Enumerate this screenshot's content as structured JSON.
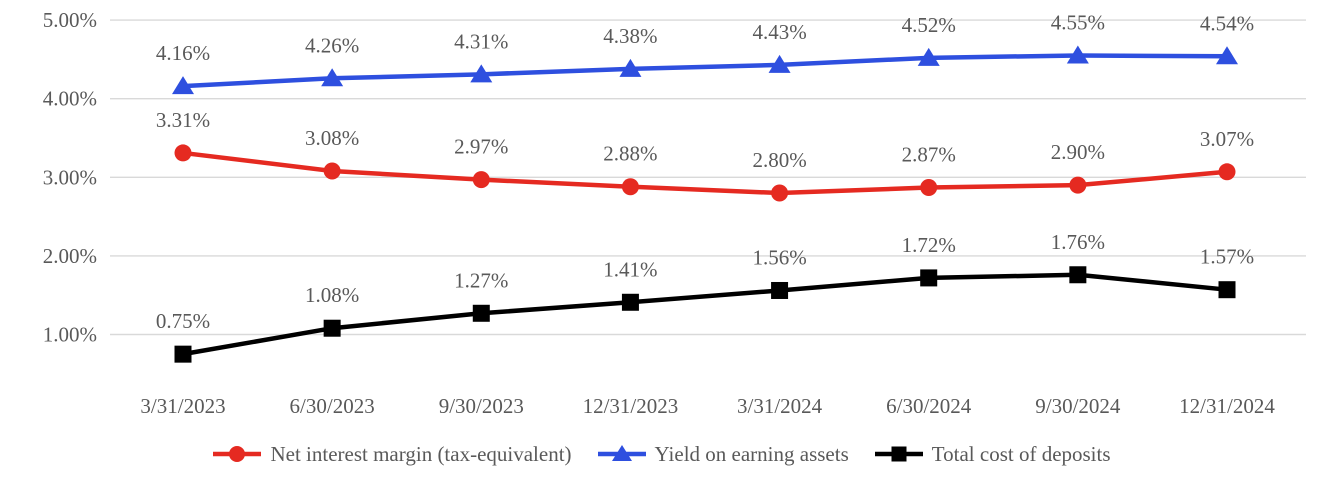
{
  "chart_data": {
    "type": "line",
    "title": "",
    "x_categories": [
      "3/31/2023",
      "6/30/2023",
      "9/30/2023",
      "12/31/2023",
      "3/31/2024",
      "6/30/2024",
      "9/30/2024",
      "12/31/2024"
    ],
    "series": [
      {
        "name": "Net interest margin (tax-equivalent)",
        "marker": "circle",
        "color": "#e52a21",
        "values": [
          3.31,
          3.08,
          2.97,
          2.88,
          2.8,
          2.87,
          2.9,
          3.07
        ],
        "labels": [
          "3.31%",
          "3.08%",
          "2.97%",
          "2.88%",
          "2.80%",
          "2.87%",
          "2.90%",
          "3.07%"
        ]
      },
      {
        "name": "Yield on earning assets",
        "marker": "triangle",
        "color": "#2e4fdf",
        "values": [
          4.16,
          4.26,
          4.31,
          4.38,
          4.43,
          4.52,
          4.55,
          4.54
        ],
        "labels": [
          "4.16%",
          "4.26%",
          "4.31%",
          "4.38%",
          "4.43%",
          "4.52%",
          "4.55%",
          "4.54%"
        ]
      },
      {
        "name": "Total cost of deposits",
        "marker": "square",
        "color": "#000000",
        "values": [
          0.75,
          1.08,
          1.27,
          1.41,
          1.56,
          1.72,
          1.76,
          1.57
        ],
        "labels": [
          "0.75%",
          "1.08%",
          "1.27%",
          "1.41%",
          "1.56%",
          "1.72%",
          "1.76%",
          "1.57%"
        ]
      }
    ],
    "y_axis": {
      "ticks": [
        5,
        4,
        3,
        2,
        1
      ],
      "tick_labels": [
        "5.00%",
        "4.00%",
        "3.00%",
        "2.00%",
        "1.00%"
      ],
      "min": 1,
      "max": 5,
      "format": "percent"
    },
    "grid": true,
    "gridlines_horizontal_only": true,
    "legend_position": "bottom",
    "colors": {
      "grid": "#d9d9d9",
      "text": "#595959",
      "background": "#ffffff"
    }
  }
}
